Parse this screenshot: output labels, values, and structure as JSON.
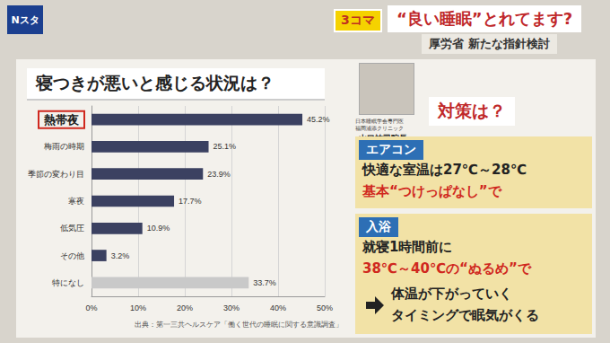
{
  "chart_data": {
    "type": "bar",
    "orientation": "horizontal",
    "title": "寝つきが悪いと感じる状況は？",
    "categories": [
      "熱帯夜",
      "梅雨の時期",
      "季節の変わり目",
      "寒夜",
      "低気圧",
      "その他",
      "特になし"
    ],
    "values": [
      45.2,
      25.1,
      23.9,
      17.7,
      10.9,
      3.2,
      33.7
    ],
    "value_labels": [
      "45.2%",
      "25.1%",
      "23.9%",
      "17.7%",
      "10.9%",
      "3.2%",
      "33.7%"
    ],
    "colors": [
      "#3b4161",
      "#3b4161",
      "#3b4161",
      "#3b4161",
      "#3b4161",
      "#3b4161",
      "#c9c9c9"
    ],
    "xlim": [
      0,
      50
    ],
    "xticks": [
      {
        "value": 0,
        "label": "0%"
      },
      {
        "value": 10,
        "label": "10%"
      },
      {
        "value": 20,
        "label": "20%"
      },
      {
        "value": 30,
        "label": "30%"
      },
      {
        "value": 40,
        "label": "40%"
      },
      {
        "value": 50,
        "label": "50%"
      }
    ],
    "grid": true,
    "data_labels": true,
    "annotations": [
      "出典：第一三共ヘルスケア「働く世代の睡眠に関する意識調査」"
    ]
  },
  "header": {
    "logo": "Nスタ",
    "badge": "3コマ",
    "title": "“良い睡眠”とれてます?",
    "subtitle": "厚労省 新たな指針検討"
  },
  "expert": {
    "affiliation": [
      "日本睡眠学会専門医",
      "福岡浦添クリニック"
    ],
    "name": "山口祐司院長"
  },
  "advice": {
    "heading": "対策は？",
    "items": [
      {
        "label": "エアコン",
        "lines": [
          "快適な室温は27℃～28℃",
          "基本“つけっぱなし”で"
        ]
      },
      {
        "label": "入浴",
        "lines": [
          "就寝1時間前に",
          "38℃～40℃の“ぬるめ”で"
        ],
        "result": [
          "体温が下がっていく",
          "タイミングで眠気がくる"
        ]
      }
    ]
  }
}
